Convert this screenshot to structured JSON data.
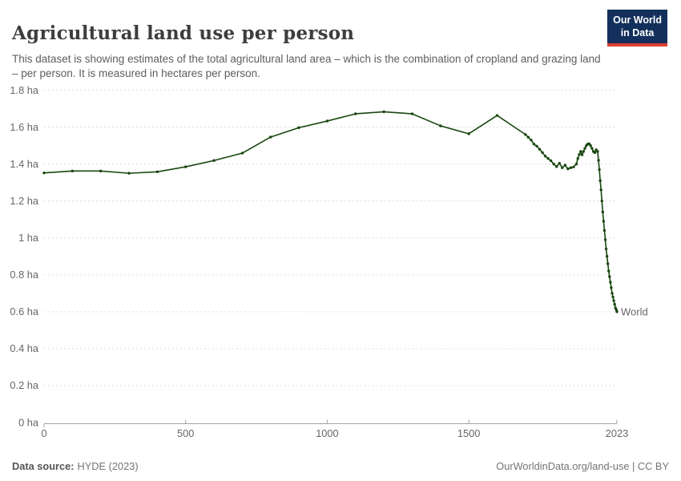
{
  "header": {
    "title": "Agricultural land use per person",
    "subtitle": "This dataset is showing estimates of the total agricultural land area – which is the combination of cropland and grazing land – per person. It is measured in hectares per person."
  },
  "logo": {
    "line1": "Our World",
    "line2": "in Data"
  },
  "chart_data": {
    "type": "line",
    "title": "Agricultural land use per person",
    "unit": "hectares per person",
    "xlabel": "",
    "ylabel": "",
    "xlim": [
      0,
      2023
    ],
    "ylim": [
      0,
      1.8
    ],
    "grid": true,
    "legend_position": "end-of-line",
    "x_ticks": [
      {
        "value": 0,
        "label": "0"
      },
      {
        "value": 500,
        "label": "500"
      },
      {
        "value": 1000,
        "label": "1000"
      },
      {
        "value": 1500,
        "label": "1500"
      },
      {
        "value": 2023,
        "label": "2023"
      }
    ],
    "y_ticks": [
      {
        "value": 0,
        "label": "0 ha"
      },
      {
        "value": 0.2,
        "label": "0.2 ha"
      },
      {
        "value": 0.4,
        "label": "0.4 ha"
      },
      {
        "value": 0.6,
        "label": "0.6 ha"
      },
      {
        "value": 0.8,
        "label": "0.8 ha"
      },
      {
        "value": 1,
        "label": "1 ha"
      },
      {
        "value": 1.2,
        "label": "1.2 ha"
      },
      {
        "value": 1.4,
        "label": "1.4 ha"
      },
      {
        "value": 1.6,
        "label": "1.6 ha"
      },
      {
        "value": 1.8,
        "label": "1.8 ha"
      }
    ],
    "series": [
      {
        "name": "World",
        "color": "#18470f",
        "points": [
          [
            0,
            1.352
          ],
          [
            100,
            1.362
          ],
          [
            200,
            1.362
          ],
          [
            300,
            1.35
          ],
          [
            400,
            1.358
          ],
          [
            500,
            1.385
          ],
          [
            600,
            1.419
          ],
          [
            700,
            1.459
          ],
          [
            800,
            1.546
          ],
          [
            900,
            1.597
          ],
          [
            1000,
            1.633
          ],
          [
            1100,
            1.672
          ],
          [
            1200,
            1.683
          ],
          [
            1300,
            1.672
          ],
          [
            1400,
            1.607
          ],
          [
            1500,
            1.564
          ],
          [
            1600,
            1.663
          ],
          [
            1700,
            1.56
          ],
          [
            1710,
            1.545
          ],
          [
            1720,
            1.53
          ],
          [
            1730,
            1.508
          ],
          [
            1740,
            1.497
          ],
          [
            1750,
            1.48
          ],
          [
            1760,
            1.462
          ],
          [
            1770,
            1.443
          ],
          [
            1780,
            1.43
          ],
          [
            1790,
            1.418
          ],
          [
            1800,
            1.4
          ],
          [
            1810,
            1.386
          ],
          [
            1820,
            1.404
          ],
          [
            1830,
            1.38
          ],
          [
            1840,
            1.394
          ],
          [
            1850,
            1.374
          ],
          [
            1860,
            1.38
          ],
          [
            1870,
            1.384
          ],
          [
            1880,
            1.4
          ],
          [
            1885,
            1.43
          ],
          [
            1890,
            1.452
          ],
          [
            1895,
            1.468
          ],
          [
            1900,
            1.45
          ],
          [
            1905,
            1.468
          ],
          [
            1910,
            1.485
          ],
          [
            1915,
            1.5
          ],
          [
            1920,
            1.508
          ],
          [
            1925,
            1.51
          ],
          [
            1930,
            1.5
          ],
          [
            1935,
            1.485
          ],
          [
            1940,
            1.468
          ],
          [
            1945,
            1.462
          ],
          [
            1950,
            1.477
          ],
          [
            1955,
            1.468
          ],
          [
            1958,
            1.42
          ],
          [
            1961,
            1.37
          ],
          [
            1964,
            1.31
          ],
          [
            1967,
            1.26
          ],
          [
            1970,
            1.2
          ],
          [
            1973,
            1.14
          ],
          [
            1976,
            1.09
          ],
          [
            1979,
            1.04
          ],
          [
            1982,
            0.99
          ],
          [
            1985,
            0.94
          ],
          [
            1988,
            0.9
          ],
          [
            1991,
            0.86
          ],
          [
            1994,
            0.82
          ],
          [
            1997,
            0.79
          ],
          [
            2000,
            0.76
          ],
          [
            2003,
            0.73
          ],
          [
            2006,
            0.7
          ],
          [
            2009,
            0.68
          ],
          [
            2012,
            0.66
          ],
          [
            2015,
            0.64
          ],
          [
            2018,
            0.62
          ],
          [
            2021,
            0.61
          ],
          [
            2023,
            0.6
          ]
        ]
      }
    ]
  },
  "footer": {
    "source_label": "Data source:",
    "source_value": "HYDE (2023)",
    "credit": "OurWorldinData.org/land-use | CC BY"
  },
  "colors": {
    "line": "#18470f",
    "grid": "#dedede",
    "axis": "#a5a5a5",
    "tick_text": "#666666",
    "title_text": "#3d3d3d",
    "subtitle_text": "#5e5e5e",
    "logo_bg": "#12305b",
    "logo_accent": "#dc3e32"
  }
}
